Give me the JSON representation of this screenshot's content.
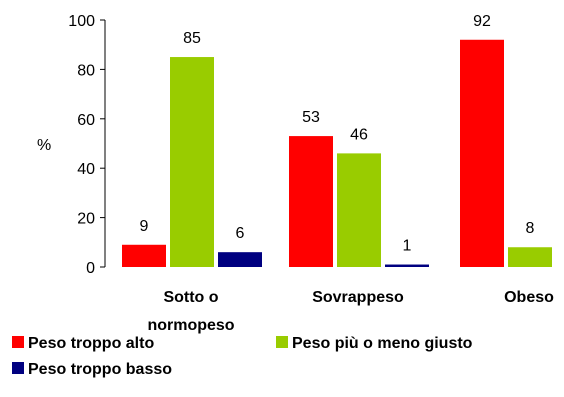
{
  "chart_data": {
    "type": "bar",
    "ylabel": "%",
    "ylim": [
      0,
      100
    ],
    "yticks": [
      0,
      20,
      40,
      60,
      80,
      100
    ],
    "grid": false,
    "legend_position": "bottom",
    "categories": [
      [
        "Sotto o",
        "normopeso"
      ],
      [
        "Sovrappeso"
      ],
      [
        "Obeso"
      ]
    ],
    "series": [
      {
        "name": "Peso troppo alto",
        "color": "#ff0000",
        "values": [
          9,
          53,
          92
        ]
      },
      {
        "name": "Peso più o meno giusto",
        "color": "#99cc00",
        "values": [
          85,
          46,
          8
        ]
      },
      {
        "name": "Peso troppo basso",
        "color": "#000080",
        "values": [
          6,
          1,
          null
        ]
      }
    ]
  }
}
